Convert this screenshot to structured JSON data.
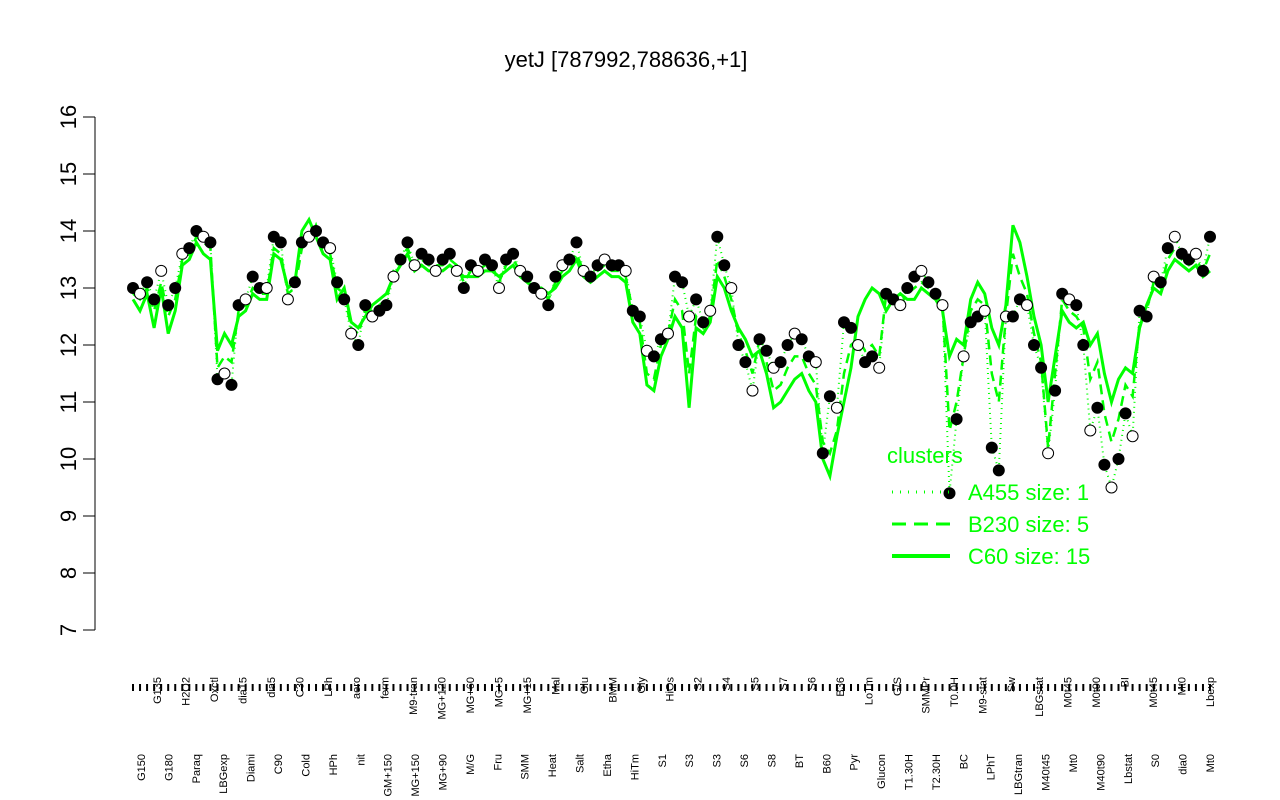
{
  "chart_data": {
    "type": "line",
    "title": "yetJ [787992,788636,+1]",
    "xlabel": "",
    "ylabel": "",
    "ylim": [
      7,
      16
    ],
    "yticks": [
      7,
      8,
      9,
      10,
      11,
      12,
      13,
      14,
      15,
      16
    ],
    "grid": false,
    "legend": {
      "title": "clusters",
      "position": "bottom-right",
      "entries": [
        "A455 size: 1",
        "B230 size: 5",
        "C60 size: 15"
      ]
    },
    "x_labels_top": [
      "G135",
      "H2O2",
      "Oxctl",
      "dia15",
      "dia5",
      "C30",
      "LPh",
      "aero",
      "ferm",
      "M9-tran",
      "MG+120",
      "MG+60",
      "MG+5",
      "MG+15",
      "Mal",
      "Glu",
      "BMM",
      "Gly",
      "HiOs",
      "S2",
      "S4",
      "S5",
      "S7",
      "S6",
      "B36",
      "LoTm",
      "G/S",
      "SMMPr",
      "T0.0H",
      "M9-stat",
      "Sw",
      "LBGstat",
      "M0t45",
      "M0t90",
      "BI",
      "M0t45",
      "Mt0",
      "Lbexp"
    ],
    "x_labels_bottom": [
      "G150",
      "G180",
      "Paraq",
      "LBGexp",
      "Diami",
      "C90",
      "Cold",
      "HPh",
      "nit",
      "GM+150",
      "MG+150",
      "MG+90",
      "M/G",
      "Fru",
      "SMM",
      "Heat",
      "Salt",
      "Etha",
      "HiTm",
      "S1",
      "S3",
      "S3",
      "S6",
      "S8",
      "BT",
      "B60",
      "Pyr",
      "Glucon",
      "T1.30H",
      "T2.30H",
      "BC",
      "LPhT",
      "LBGtran",
      "M40t45",
      "Mt0",
      "M40t90",
      "Lbstat",
      "S0",
      "dia0",
      "Mt0"
    ],
    "series": [
      {
        "name": "A455 size: 1",
        "values": [
          13.0,
          12.9,
          13.1,
          12.8,
          13.3,
          12.7,
          13.0,
          13.6,
          13.7,
          14.0,
          13.9,
          13.8,
          11.4,
          11.5,
          11.3,
          12.7,
          12.8,
          13.2,
          13.0,
          13.0,
          13.9,
          13.8,
          12.8,
          13.1,
          13.8,
          13.9,
          14.0,
          13.8,
          13.7,
          13.1,
          12.8,
          12.2,
          12.0,
          12.7,
          12.5,
          12.6,
          12.7,
          13.2,
          13.5,
          13.8,
          13.4,
          13.6,
          13.5,
          13.3,
          13.5,
          13.6,
          13.3,
          13.0,
          13.4,
          13.3,
          13.5,
          13.4,
          13.0,
          13.5,
          13.6,
          13.3,
          13.2,
          13.0,
          12.9,
          12.7,
          13.2,
          13.4,
          13.5,
          13.8,
          13.3,
          13.2,
          13.4,
          13.5,
          13.4,
          13.4,
          13.3,
          12.6,
          12.5,
          11.9,
          11.8,
          12.1,
          12.2,
          13.2,
          13.1,
          12.5,
          12.8,
          12.4,
          12.6,
          13.9,
          13.4,
          13.0,
          12.0,
          11.7,
          11.2,
          12.1,
          11.9,
          11.6,
          11.7,
          12.0,
          12.2,
          12.1,
          11.8,
          11.7,
          10.1,
          11.1,
          10.9,
          12.4,
          12.3,
          12.0,
          11.7,
          11.8,
          11.6,
          12.9,
          12.8,
          12.7,
          13.0,
          13.2,
          13.3,
          13.1,
          12.9,
          12.7,
          9.4,
          10.7,
          11.8,
          12.4,
          12.5,
          12.6,
          10.2,
          9.8,
          12.5,
          12.5,
          12.8,
          12.7,
          12.0,
          11.6,
          10.1,
          11.2,
          12.9,
          12.8,
          12.7,
          12.0,
          10.5,
          10.9,
          9.9,
          9.5,
          10.0,
          10.8,
          10.4,
          12.6,
          12.5,
          13.2,
          13.1,
          13.7,
          13.9,
          13.6,
          13.5,
          13.6,
          13.3,
          13.9
        ]
      },
      {
        "name": "B230 size: 5",
        "values": [
          12.9,
          12.8,
          13.0,
          12.6,
          13.1,
          12.5,
          12.8,
          13.5,
          13.6,
          13.9,
          13.8,
          13.7,
          11.6,
          11.8,
          11.7,
          12.6,
          12.7,
          13.0,
          12.9,
          12.9,
          13.7,
          13.6,
          12.9,
          13.0,
          13.7,
          13.8,
          14.1,
          13.7,
          13.6,
          13.0,
          12.9,
          12.3,
          12.2,
          12.6,
          12.6,
          12.7,
          12.8,
          13.3,
          13.5,
          13.7,
          13.4,
          13.5,
          13.4,
          13.4,
          13.4,
          13.5,
          13.4,
          13.1,
          13.3,
          13.3,
          13.4,
          13.4,
          13.1,
          13.4,
          13.5,
          13.3,
          13.2,
          13.0,
          13.0,
          12.8,
          13.1,
          13.3,
          13.4,
          13.6,
          13.3,
          13.2,
          13.3,
          13.4,
          13.3,
          13.3,
          13.2,
          12.6,
          12.4,
          11.5,
          11.4,
          12.0,
          12.2,
          12.8,
          12.6,
          11.5,
          12.5,
          12.3,
          12.5,
          13.5,
          13.2,
          12.8,
          12.2,
          11.9,
          11.5,
          12.1,
          11.7,
          11.2,
          11.3,
          11.6,
          11.8,
          11.8,
          11.5,
          11.3,
          10.3,
          10.1,
          10.5,
          11.5,
          12.0,
          12.1,
          11.9,
          12.0,
          11.8,
          12.9,
          12.8,
          12.7,
          12.9,
          13.0,
          13.1,
          13.0,
          12.9,
          12.7,
          10.5,
          11.0,
          11.8,
          12.6,
          12.8,
          12.7,
          11.5,
          11.0,
          12.5,
          13.6,
          13.2,
          12.9,
          12.2,
          11.7,
          10.2,
          11.5,
          12.8,
          12.6,
          12.5,
          12.3,
          11.4,
          11.7,
          10.8,
          10.3,
          10.7,
          11.3,
          11.1,
          12.4,
          12.6,
          13.1,
          13.0,
          13.5,
          13.7,
          13.5,
          13.4,
          13.5,
          13.3,
          13.6
        ]
      },
      {
        "name": "C60 size: 15",
        "values": [
          12.8,
          12.6,
          12.9,
          12.3,
          13.0,
          12.2,
          12.6,
          13.4,
          13.5,
          13.8,
          13.6,
          13.5,
          11.9,
          12.2,
          12.0,
          12.5,
          12.6,
          12.9,
          12.8,
          12.8,
          13.6,
          13.5,
          13.0,
          13.1,
          14.0,
          14.2,
          13.9,
          13.6,
          13.5,
          12.8,
          13.0,
          12.4,
          12.3,
          12.5,
          12.7,
          12.8,
          12.9,
          13.2,
          13.4,
          13.6,
          13.3,
          13.4,
          13.3,
          13.3,
          13.3,
          13.4,
          13.3,
          13.2,
          13.2,
          13.2,
          13.3,
          13.3,
          13.2,
          13.3,
          13.4,
          13.2,
          13.1,
          13.0,
          13.0,
          12.9,
          13.0,
          13.2,
          13.3,
          13.5,
          13.2,
          13.1,
          13.2,
          13.3,
          13.2,
          13.2,
          13.1,
          12.4,
          12.2,
          11.3,
          11.2,
          11.8,
          12.1,
          12.5,
          12.3,
          10.9,
          12.3,
          12.2,
          12.4,
          13.2,
          13.0,
          12.6,
          12.3,
          12.1,
          11.8,
          11.9,
          11.5,
          10.9,
          11.0,
          11.2,
          11.4,
          11.5,
          11.2,
          11.0,
          10.0,
          9.7,
          10.4,
          11.0,
          11.6,
          12.5,
          12.8,
          13.0,
          12.9,
          12.6,
          12.8,
          12.9,
          12.8,
          12.8,
          13.0,
          12.9,
          12.8,
          12.6,
          11.8,
          12.1,
          12.0,
          12.8,
          13.1,
          12.9,
          12.3,
          12.0,
          12.7,
          14.1,
          13.8,
          13.2,
          12.5,
          12.0,
          11.0,
          11.8,
          12.6,
          12.4,
          12.3,
          12.4,
          12.0,
          12.2,
          11.5,
          11.0,
          11.4,
          11.6,
          11.5,
          12.3,
          12.7,
          13.0,
          12.9,
          13.3,
          13.5,
          13.4,
          13.3,
          13.4,
          13.2,
          13.3
        ]
      }
    ],
    "colors": {
      "curve": "#00ff00",
      "point_fill_black": "#000000",
      "point_fill_white": "#ffffff",
      "axis": "#000000"
    }
  }
}
